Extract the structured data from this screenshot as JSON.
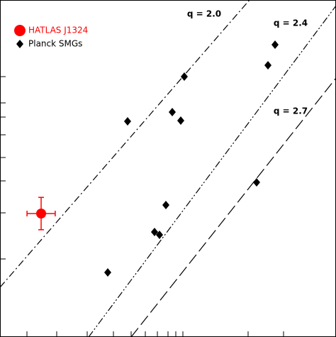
{
  "chart_data": {
    "type": "scatter",
    "xlim": [
      0,
      100
    ],
    "ylim": [
      0,
      100
    ],
    "xticks": [
      8.02,
      16.88,
      25.95,
      33.76,
      39.03,
      43.25,
      46.84,
      50.0,
      52.32,
      54.43,
      73.84,
      84.39
    ],
    "yticks": [
      77.26,
      69.47,
      65.26,
      60.0,
      53.26,
      46.32,
      36.84,
      23.16
    ],
    "legend": "upper left",
    "series": [
      {
        "name": "HATLAS J1324",
        "color": "#ff0000",
        "marker": "circle",
        "x": [
          12.24
        ],
        "y": [
          36.63
        ],
        "xerr": [
          4.2
        ],
        "yerr": [
          4.8
        ]
      },
      {
        "name": "Planck SMGs",
        "color": "#000000",
        "marker": "diamond",
        "x": [
          37.97,
          54.85,
          51.27,
          53.8,
          81.86,
          79.75,
          49.37,
          45.99,
          47.47,
          32.07,
          76.37
        ],
        "y": [
          64.0,
          77.26,
          66.74,
          64.21,
          86.74,
          80.63,
          39.16,
          31.16,
          30.32,
          19.16,
          45.89
        ]
      }
    ],
    "lines": [
      {
        "label": "q = 2.0",
        "style": "dash-dot",
        "x": [
          0,
          74.26
        ],
        "y": [
          14.74,
          100
        ]
      },
      {
        "label": "q = 2.4",
        "style": "dash-dot-dot",
        "x": [
          26.37,
          100
        ],
        "y": [
          0,
          98.3
        ]
      },
      {
        "label": "q = 2.7",
        "style": "dashed",
        "x": [
          39.03,
          100
        ],
        "y": [
          0,
          76.84
        ]
      }
    ]
  }
}
